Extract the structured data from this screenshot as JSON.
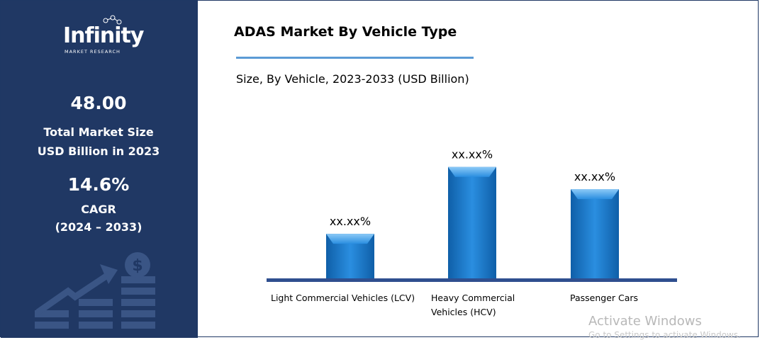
{
  "brand": {
    "name": "Infinity",
    "tagline": "MARKET RESEARCH"
  },
  "stats": {
    "market_size_value": "48.00",
    "market_size_label_1": "Total Market Size",
    "market_size_label_2": "USD Billion in 2023",
    "cagr_value": "14.6%",
    "cagr_label": "CAGR",
    "cagr_period": "(2024 – 2033)"
  },
  "colors": {
    "panel": "#203864",
    "bar": "#1f77c7",
    "bar_light": "#5fb0f0",
    "baseline": "#2f4f8f",
    "title_rule": "#5b9bd5"
  },
  "chart_data": {
    "type": "bar",
    "title": "ADAS Market By Vehicle Type",
    "subtitle": "Size, By Vehicle, 2023-2033 (USD Billion)",
    "categories": [
      "Light Commercial Vehicles (LCV)",
      "Heavy    Commercial Vehicles (HCV)",
      "Passenger Cars"
    ],
    "category_lines": [
      [
        "Light Commercial Vehicles (LCV)"
      ],
      [
        "Heavy    Commercial",
        "Vehicles (HCV)"
      ],
      [
        "Passenger Cars"
      ]
    ],
    "values": [
      2,
      5,
      4
    ],
    "data_labels": [
      "xx.xx%",
      "xx.xx%",
      "xx.xx%"
    ],
    "ylim": [
      0,
      5.5
    ],
    "grid": false,
    "legend": "none"
  },
  "watermark": {
    "line1": "Activate Windows",
    "line2": "Go to Settings to activate Windows."
  }
}
